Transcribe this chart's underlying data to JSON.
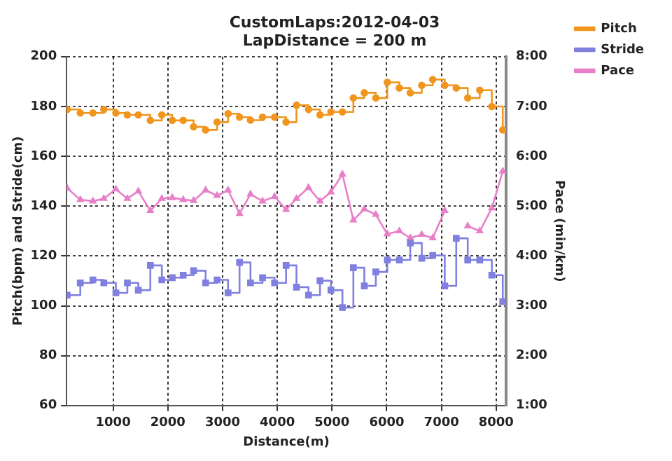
{
  "chart_data": {
    "type": "line",
    "title": "CustomLaps:2012-04-03",
    "subtitle": "LapDistance = 200 m",
    "xlabel": "Distance(m)",
    "ylabel": "Pitch(bpm) and Stride(cm)",
    "y2label": "Pace (min/km)",
    "x": [
      160,
      400,
      630,
      830,
      1050,
      1260,
      1460,
      1680,
      1890,
      2080,
      2280,
      2470,
      2690,
      2900,
      3100,
      3310,
      3510,
      3730,
      3950,
      4160,
      4350,
      4570,
      4780,
      4980,
      5190,
      5390,
      5590,
      5800,
      6010,
      6230,
      6430,
      6640,
      6840,
      7060,
      7270,
      7480,
      7700,
      7920,
      8120
    ],
    "series": [
      {
        "name": "Pitch",
        "type": "step",
        "color": "#f0961e",
        "marker": "circle",
        "values": [
          178.8,
          177.4,
          177.4,
          178.8,
          177.4,
          176.6,
          176.6,
          174.4,
          176.6,
          174.4,
          174.4,
          171.8,
          170.6,
          173.7,
          177.1,
          175.7,
          174.5,
          175.7,
          175.7,
          173.7,
          180.5,
          178.8,
          176.6,
          177.8,
          177.8,
          183.4,
          185.5,
          183.4,
          189.7,
          187.4,
          185.5,
          188.5,
          190.8,
          188.5,
          187.4,
          183.4,
          186.5,
          180,
          170.6
        ]
      },
      {
        "name": "Stride",
        "type": "step",
        "color": "#8080e0",
        "marker": "square",
        "values": [
          104.3,
          109.2,
          110.4,
          109.2,
          105.2,
          109.2,
          106.3,
          116.2,
          110.4,
          111.3,
          112.3,
          114.1,
          109.2,
          110.4,
          105.2,
          117.4,
          109.2,
          111.3,
          109.2,
          116.2,
          107.5,
          104.3,
          110.1,
          106.3,
          99.3,
          115.3,
          108,
          113.6,
          118.4,
          118.4,
          125.2,
          119.1,
          120.2,
          108,
          127.1,
          118.4,
          118.4,
          112.3,
          101.7
        ]
      },
      {
        "name": "Pace",
        "type": "line",
        "axis": "y2",
        "color": "#e87fc8",
        "marker": "triangle",
        "values": [
          5.36,
          5.13,
          5.1,
          5.15,
          5.34,
          5.15,
          5.3,
          4.91,
          5.15,
          5.17,
          5.13,
          5.11,
          5.32,
          5.21,
          5.32,
          4.85,
          5.24,
          5.1,
          5.19,
          4.93,
          5.15,
          5.37,
          5.1,
          5.28,
          5.64,
          4.72,
          4.94,
          4.83,
          4.44,
          4.5,
          4.36,
          4.43,
          4.36,
          4.91,
          null,
          4.6,
          4.5,
          4.96,
          5.7
        ]
      }
    ],
    "xlim": [
      150,
      8180
    ],
    "xticks": [
      1000,
      2000,
      3000,
      4000,
      5000,
      6000,
      7000,
      8000
    ],
    "ylim": [
      60,
      200
    ],
    "yticks": [
      60,
      80,
      100,
      120,
      140,
      160,
      180,
      200
    ],
    "y2lim": [
      1,
      8
    ],
    "y2ticks": [
      {
        "value": 1,
        "label": "1:00"
      },
      {
        "value": 2,
        "label": "2:00"
      },
      {
        "value": 3,
        "label": "3:00"
      },
      {
        "value": 4,
        "label": "4:00"
      },
      {
        "value": 5,
        "label": "5:00"
      },
      {
        "value": 6,
        "label": "6:00"
      },
      {
        "value": 7,
        "label": "7:00"
      },
      {
        "value": 8,
        "label": "8:00"
      }
    ],
    "grid": true,
    "legend": "right"
  }
}
